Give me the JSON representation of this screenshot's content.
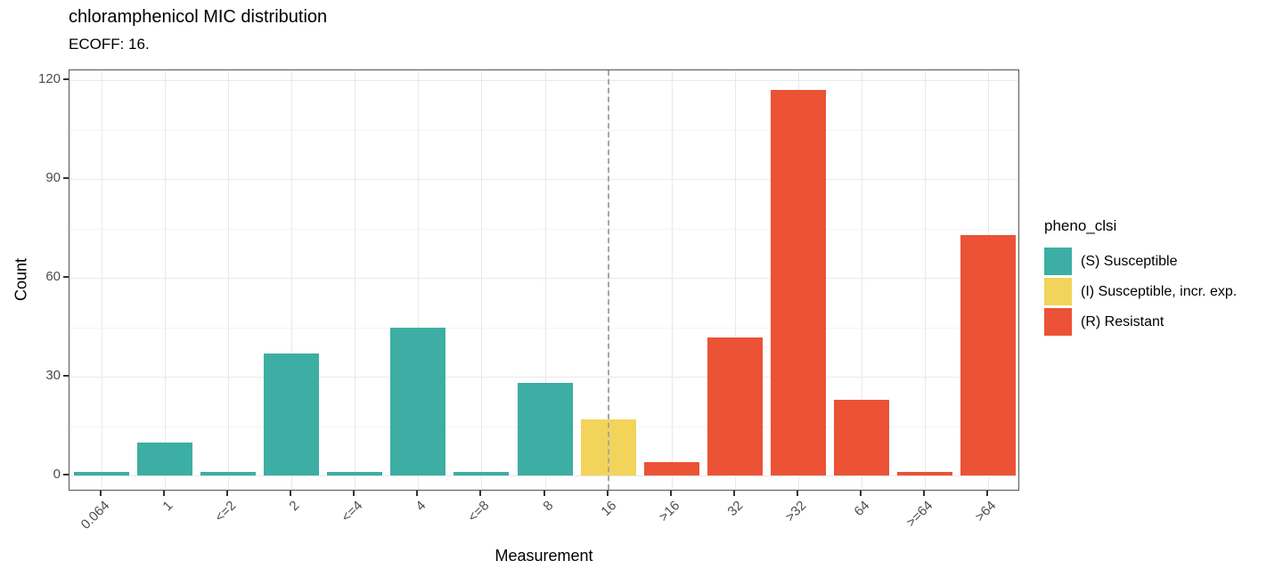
{
  "header": {
    "title": "chloramphenicol MIC distribution",
    "subtitle": "ECOFF: 16."
  },
  "chart_data": {
    "type": "bar",
    "title": "chloramphenicol MIC distribution",
    "subtitle": "ECOFF: 16.",
    "xlabel": "Measurement",
    "ylabel": "Count",
    "categories": [
      "0.064",
      "1",
      "<=2",
      "2",
      "<=4",
      "4",
      "<=8",
      "8",
      "16",
      ">16",
      "32",
      ">32",
      "64",
      ">=64",
      ">64"
    ],
    "values": [
      1,
      10,
      1,
      37,
      1,
      45,
      1,
      28,
      17,
      4,
      42,
      117,
      23,
      1,
      73
    ],
    "bar_classes": [
      "S",
      "S",
      "S",
      "S",
      "S",
      "S",
      "S",
      "S",
      "I",
      "R",
      "R",
      "R",
      "R",
      "R",
      "R"
    ],
    "ylim": [
      0,
      120
    ],
    "yticks": [
      0,
      30,
      60,
      90,
      120
    ],
    "yticks_minor": [
      15,
      45,
      75,
      105
    ],
    "grid": true,
    "ecoff_category": "16",
    "ecoff_line_color": "#a6a6a6",
    "class_colors": {
      "S": "#3CAEA3",
      "I": "#F2D45A",
      "R": "#EB5236"
    },
    "legend_position": "right",
    "legend": {
      "title": "pheno_clsi",
      "items": [
        {
          "key": "S",
          "label": "(S) Susceptible",
          "color": "#3CAEA3"
        },
        {
          "key": "I",
          "label": "(I) Susceptible, incr. exp.",
          "color": "#F2D45A"
        },
        {
          "key": "R",
          "label": "(R) Resistant",
          "color": "#EB5236"
        }
      ]
    }
  }
}
